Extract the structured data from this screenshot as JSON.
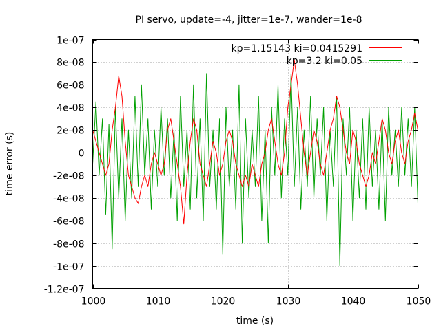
{
  "chart_data": {
    "type": "line",
    "title": "PI servo, update=-4, jitter=1e-7, wander=1e-8",
    "xlabel": "time (s)",
    "ylabel": "time error (s)",
    "xlim": [
      1000,
      1050
    ],
    "ylim": [
      -1.2e-07,
      1e-07
    ],
    "grid": true,
    "legend_position": "top-right",
    "x_ticks": [
      {
        "value": 1000,
        "label": "1000"
      },
      {
        "value": 1010,
        "label": "1010"
      },
      {
        "value": 1020,
        "label": "1020"
      },
      {
        "value": 1030,
        "label": "1030"
      },
      {
        "value": 1040,
        "label": "1040"
      },
      {
        "value": 1050,
        "label": "1050"
      }
    ],
    "y_ticks": [
      {
        "value": 1e-07,
        "label": "1e-07"
      },
      {
        "value": 8e-08,
        "label": "8e-08"
      },
      {
        "value": 6e-08,
        "label": "6e-08"
      },
      {
        "value": 4e-08,
        "label": "4e-08"
      },
      {
        "value": 2e-08,
        "label": "2e-08"
      },
      {
        "value": 0,
        "label": "0"
      },
      {
        "value": -2e-08,
        "label": "-2e-08"
      },
      {
        "value": -4e-08,
        "label": "-4e-08"
      },
      {
        "value": -6e-08,
        "label": "-6e-08"
      },
      {
        "value": -8e-08,
        "label": "-8e-08"
      },
      {
        "value": -1e-07,
        "label": "-1e-07"
      },
      {
        "value": -1.2e-07,
        "label": "-1.2e-07"
      }
    ],
    "series": [
      {
        "name": "kp=1.15143 ki=0.0415291",
        "color": "#ff0000",
        "x": [
          1000,
          1000.5,
          1001,
          1001.5,
          1002,
          1002.5,
          1003,
          1003.5,
          1004,
          1004.5,
          1005,
          1005.5,
          1006,
          1006.5,
          1007,
          1007.5,
          1008,
          1008.5,
          1009,
          1009.5,
          1010,
          1010.5,
          1011,
          1011.5,
          1012,
          1012.5,
          1013,
          1013.5,
          1014,
          1014.5,
          1015,
          1015.5,
          1016,
          1016.5,
          1017,
          1017.5,
          1018,
          1018.5,
          1019,
          1019.5,
          1020,
          1020.5,
          1021,
          1021.5,
          1022,
          1022.5,
          1023,
          1023.5,
          1024,
          1024.5,
          1025,
          1025.5,
          1026,
          1026.5,
          1027,
          1027.5,
          1028,
          1028.5,
          1029,
          1029.5,
          1030,
          1030.5,
          1031,
          1031.5,
          1032,
          1032.5,
          1033,
          1033.5,
          1034,
          1034.5,
          1035,
          1035.5,
          1036,
          1036.5,
          1037,
          1037.5,
          1038,
          1038.5,
          1039,
          1039.5,
          1040,
          1040.5,
          1041,
          1041.5,
          1042,
          1042.5,
          1043,
          1043.5,
          1044,
          1044.5,
          1045,
          1045.5,
          1046,
          1046.5,
          1047,
          1047.5,
          1048,
          1048.5,
          1049,
          1049.5,
          1050
        ],
        "y": [
          2e-08,
          1e-08,
          0,
          -1e-08,
          -2e-08,
          -1e-08,
          2e-08,
          4e-08,
          6.8e-08,
          5e-08,
          1e-08,
          -2e-08,
          -3e-08,
          -4e-08,
          -4.5e-08,
          -3e-08,
          -2e-08,
          -3e-08,
          -1e-08,
          0,
          -1e-08,
          -2e-08,
          -1e-08,
          2e-08,
          3e-08,
          1e-08,
          -1e-08,
          -3e-08,
          -6.3e-08,
          -2e-08,
          1e-08,
          3e-08,
          2e-08,
          -1e-08,
          -2e-08,
          -3e-08,
          -1e-08,
          1e-08,
          0,
          -2e-08,
          -1e-08,
          1e-08,
          2e-08,
          1e-08,
          -1e-08,
          -2e-08,
          -3e-08,
          -2e-08,
          -3e-08,
          -1e-08,
          -2e-08,
          -3e-08,
          -1e-08,
          0,
          2e-08,
          3e-08,
          1e-08,
          -1e-08,
          -2e-08,
          0,
          4e-08,
          6e-08,
          8.2e-08,
          6e-08,
          3e-08,
          0,
          -2e-08,
          0,
          2e-08,
          1e-08,
          -1e-08,
          -2e-08,
          0,
          2e-08,
          3e-08,
          5e-08,
          4e-08,
          2e-08,
          0,
          -1e-08,
          2e-08,
          1e-08,
          -1e-08,
          -2e-08,
          -3e-08,
          -2e-08,
          0,
          -1e-08,
          1e-08,
          3e-08,
          2e-08,
          0,
          -1e-08,
          1e-08,
          2e-08,
          0,
          -1e-08,
          1e-08,
          2e-08,
          3.5e-08,
          2e-08
        ]
      },
      {
        "name": "kp=3.2 ki=0.05",
        "color": "#00a000",
        "x": [
          1000,
          1000.5,
          1001,
          1001.5,
          1002,
          1002.5,
          1003,
          1003.5,
          1004,
          1004.5,
          1005,
          1005.5,
          1006,
          1006.5,
          1007,
          1007.5,
          1008,
          1008.5,
          1009,
          1009.5,
          1010,
          1010.5,
          1011,
          1011.5,
          1012,
          1012.5,
          1013,
          1013.5,
          1014,
          1014.5,
          1015,
          1015.5,
          1016,
          1016.5,
          1017,
          1017.5,
          1018,
          1018.5,
          1019,
          1019.5,
          1020,
          1020.5,
          1021,
          1021.5,
          1022,
          1022.5,
          1023,
          1023.5,
          1024,
          1024.5,
          1025,
          1025.5,
          1026,
          1026.5,
          1027,
          1027.5,
          1028,
          1028.5,
          1029,
          1029.5,
          1030,
          1030.5,
          1031,
          1031.5,
          1032,
          1032.5,
          1033,
          1033.5,
          1034,
          1034.5,
          1035,
          1035.5,
          1036,
          1036.5,
          1037,
          1037.5,
          1038,
          1038.5,
          1039,
          1039.5,
          1040,
          1040.5,
          1041,
          1041.5,
          1042,
          1042.5,
          1043,
          1043.5,
          1044,
          1044.5,
          1045,
          1045.5,
          1046,
          1046.5,
          1047,
          1047.5,
          1048,
          1048.5,
          1049,
          1049.5,
          1050
        ],
        "y": [
          -1e-08,
          4.5e-08,
          -2e-08,
          3e-08,
          -5.5e-08,
          2.5e-08,
          -8.5e-08,
          4e-08,
          -4e-08,
          3e-08,
          -6e-08,
          2e-08,
          -4e-08,
          5e-08,
          -3e-08,
          6e-08,
          -2e-08,
          3e-08,
          -5e-08,
          2e-08,
          -3e-08,
          4e-08,
          -2e-08,
          3e-08,
          -4e-08,
          2e-08,
          -6e-08,
          5e-08,
          -3e-08,
          2e-08,
          -5e-08,
          6e-08,
          -4e-08,
          3e-08,
          -6e-08,
          7e-08,
          -3e-08,
          2e-08,
          -5e-08,
          3e-08,
          -9e-08,
          4e-08,
          -3e-08,
          2e-08,
          -5e-08,
          6e-08,
          -8e-08,
          3e-08,
          -4e-08,
          2e-08,
          -3e-08,
          5e-08,
          -6e-08,
          2e-08,
          -8e-08,
          4e-08,
          -2e-08,
          6e-08,
          -4e-08,
          3e-08,
          -2e-08,
          7e-08,
          -3e-08,
          4e-08,
          -5e-08,
          2e-08,
          -3e-08,
          5e-08,
          -4e-08,
          3e-08,
          -2e-08,
          4e-08,
          -6e-08,
          2e-08,
          -3e-08,
          5e-08,
          -1e-07,
          3e-08,
          -2e-08,
          4e-08,
          -6e-08,
          2e-08,
          -4e-08,
          3e-08,
          -5e-08,
          4e-08,
          -3e-08,
          2e-08,
          -5e-08,
          3e-08,
          -6e-08,
          4e-08,
          -2e-08,
          2e-08,
          -3e-08,
          4e-08,
          -2e-08,
          3e-08,
          -3e-08,
          4e-08,
          -4.5e-08
        ]
      }
    ]
  }
}
